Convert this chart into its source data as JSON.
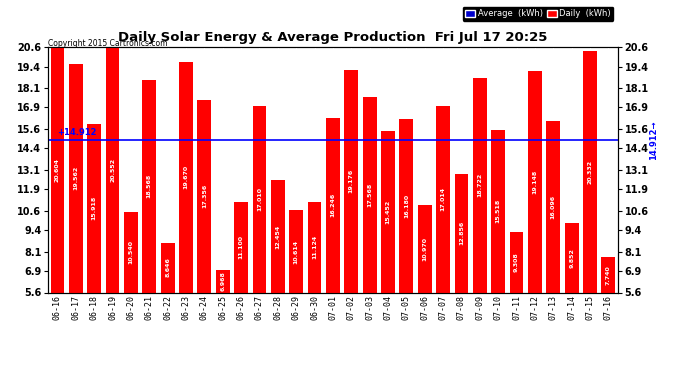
{
  "title": "Daily Solar Energy & Average Production  Fri Jul 17 20:25",
  "copyright": "Copyright 2015 Cartronics.com",
  "categories": [
    "06-16",
    "06-17",
    "06-18",
    "06-19",
    "06-20",
    "06-21",
    "06-22",
    "06-23",
    "06-24",
    "06-25",
    "06-26",
    "06-27",
    "06-28",
    "06-29",
    "06-30",
    "07-01",
    "07-02",
    "07-03",
    "07-04",
    "07-05",
    "07-06",
    "07-07",
    "07-08",
    "07-09",
    "07-10",
    "07-11",
    "07-12",
    "07-13",
    "07-14",
    "07-15",
    "07-16"
  ],
  "values": [
    20.604,
    19.562,
    15.918,
    20.552,
    10.54,
    18.568,
    8.646,
    19.67,
    17.356,
    6.968,
    11.1,
    17.01,
    12.454,
    10.614,
    11.124,
    16.246,
    19.176,
    17.568,
    15.452,
    16.18,
    10.97,
    17.014,
    12.856,
    18.722,
    15.518,
    9.308,
    19.148,
    16.096,
    9.852,
    20.332,
    7.74
  ],
  "average": 14.912,
  "bar_color": "#FF0000",
  "avg_line_color": "#0000FF",
  "ylim_min": 5.6,
  "ylim_max": 20.6,
  "yticks": [
    5.6,
    6.9,
    8.1,
    9.4,
    10.6,
    11.9,
    13.1,
    14.4,
    15.6,
    16.9,
    18.1,
    19.4,
    20.6
  ],
  "background_color": "#FFFFFF",
  "plot_bg_color": "#FFFFFF",
  "grid_color": "#AAAAAA",
  "bar_label_color": "#FFFFFF",
  "avg_label_left": "+14.912",
  "avg_label_right": "14.912→",
  "legend_avg_bg": "#0000CC",
  "legend_daily_bg": "#FF0000",
  "legend_text_avg": "Average  (kWh)",
  "legend_text_daily": "Daily  (kWh)"
}
